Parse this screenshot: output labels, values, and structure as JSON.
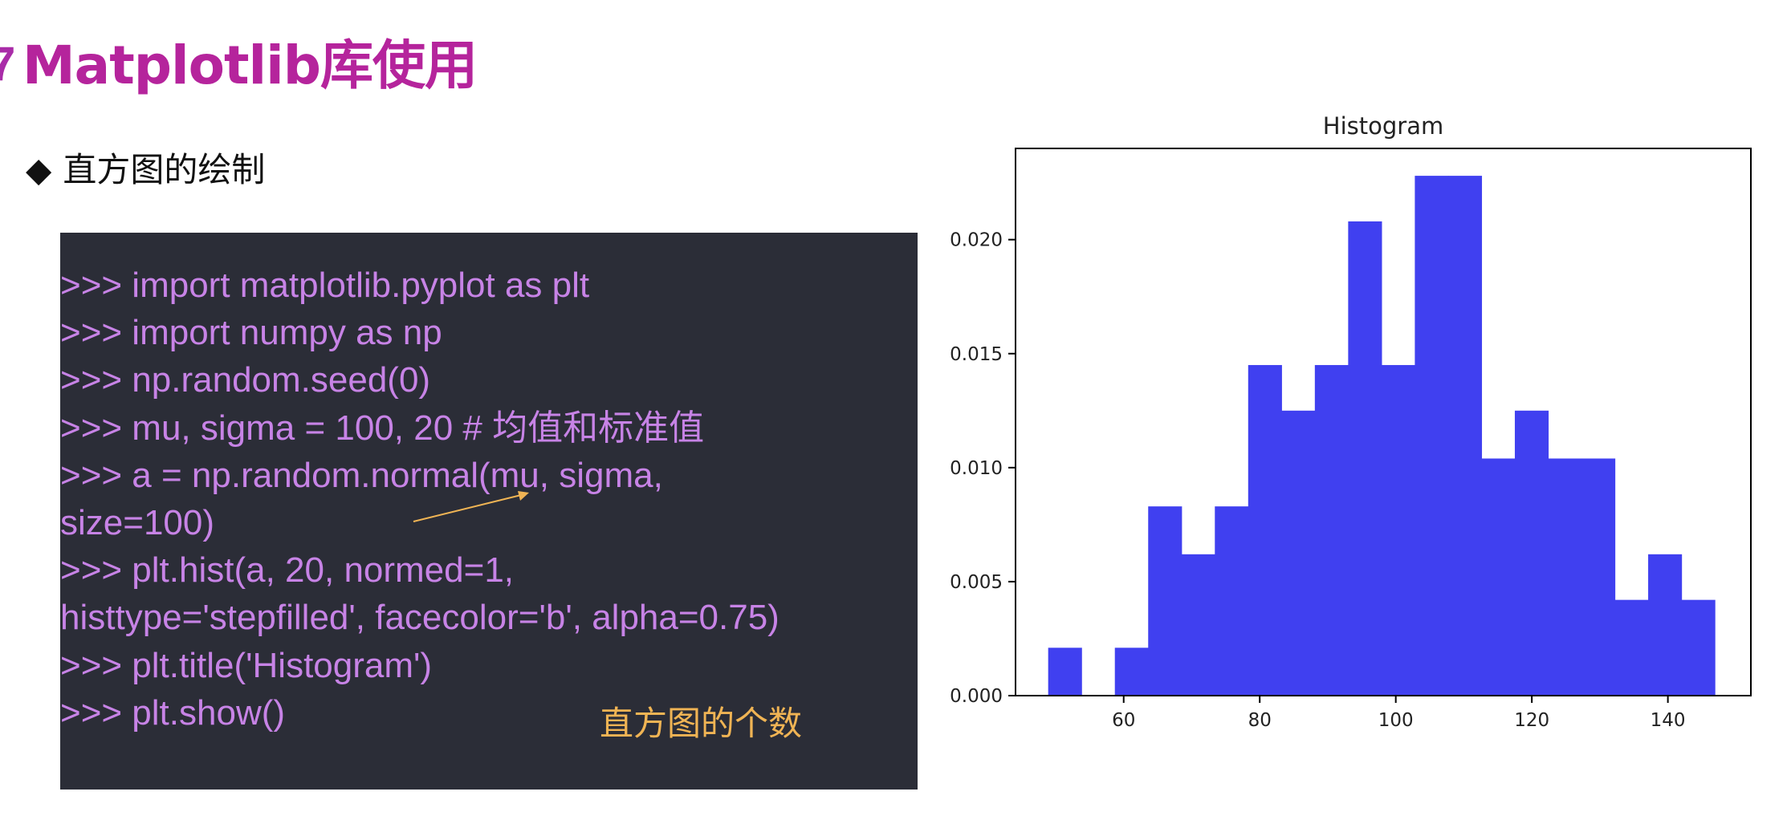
{
  "slide": {
    "title_mark": "7",
    "title": "Matplotlib库使用",
    "subtitle_bullet": "◆",
    "subtitle": "直方图的绘制"
  },
  "code": {
    "lines": [
      ">>> import matplotlib.pyplot as plt",
      ">>> import numpy as np",
      ">>> np.random.seed(0)",
      ">>> mu, sigma = 100, 20  # 均值和标准值",
      ">>> a = np.random.normal(mu, sigma,",
      "size=100)",
      ">>> plt.hist(a, 20, normed=1,",
      "histtype='stepfilled', facecolor='b', alpha=0.75)",
      ">>> plt.title('Histogram')",
      ">>> plt.show()"
    ],
    "annotation": "直方图的个数"
  },
  "colors": {
    "title": "#b5249c",
    "code_background": "#2b2d37",
    "code_text": "#c783e6",
    "annotation": "#f0b454",
    "bar_fill": "#4040f0"
  },
  "chart_data": {
    "type": "bar",
    "title": "Histogram",
    "xlabel": "",
    "ylabel": "",
    "bin_edges": [
      48.9,
      53.8,
      58.7,
      63.6,
      68.5,
      73.4,
      78.3,
      83.2,
      88.1,
      93.0,
      97.9,
      102.8,
      107.7,
      112.6,
      117.5,
      122.4,
      127.3,
      132.2,
      137.1,
      142.0,
      146.9
    ],
    "values": [
      0.0021,
      0.0,
      0.0021,
      0.0083,
      0.0062,
      0.0083,
      0.0145,
      0.0125,
      0.0145,
      0.0208,
      0.0145,
      0.0228,
      0.0228,
      0.0104,
      0.0125,
      0.0104,
      0.0104,
      0.0042,
      0.0062,
      0.0042
    ],
    "xlim": [
      44.1,
      152.2
    ],
    "ylim": [
      0,
      0.024
    ],
    "xticks": [
      60,
      80,
      100,
      120,
      140
    ],
    "yticks": [
      0.0,
      0.005,
      0.01,
      0.015,
      0.02
    ],
    "xtick_labels": [
      "60",
      "80",
      "100",
      "120",
      "140"
    ],
    "ytick_labels": [
      "0.000",
      "0.005",
      "0.010",
      "0.015",
      "0.020"
    ],
    "grid": false,
    "legend": "none"
  }
}
